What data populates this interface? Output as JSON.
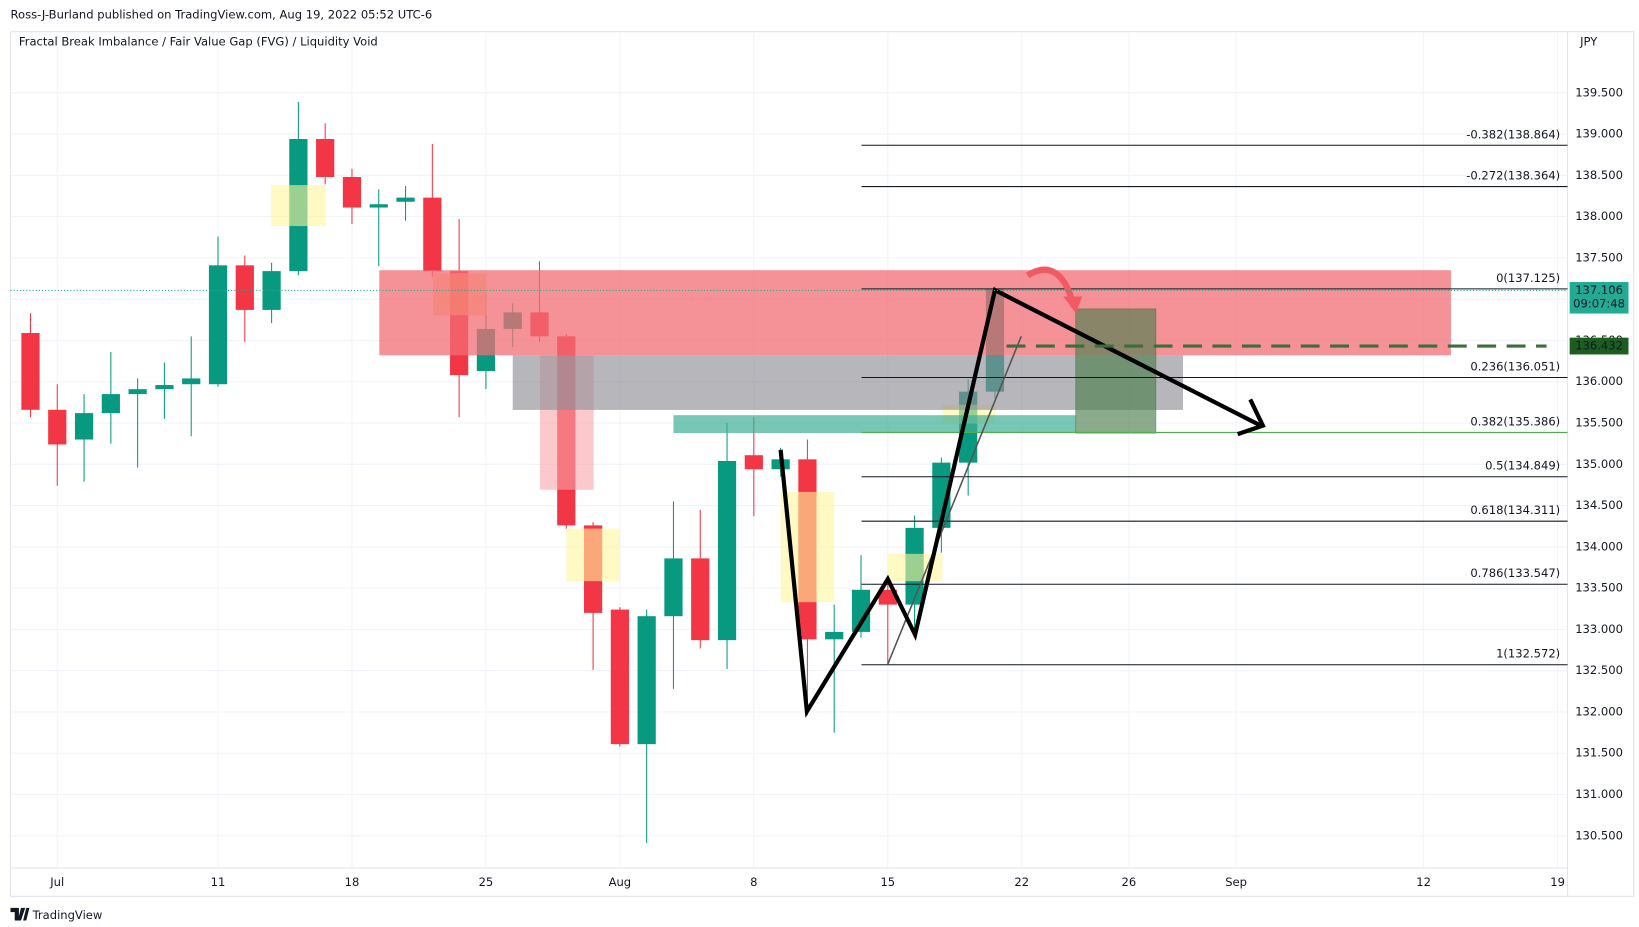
{
  "header": "Ross-J-Burland published on TradingView.com, Aug 19, 2022 05:52 UTC-6",
  "logo": "TradingView",
  "chart_data": {
    "type": "candlestick",
    "title": "Fractal Break Imbalance / Fair Value Gap (FVG) / Liquidity Void",
    "currency": "JPY",
    "categories": [
      null,
      "Jul",
      null,
      null,
      null,
      null,
      null,
      "11",
      null,
      null,
      null,
      null,
      "18",
      null,
      null,
      null,
      null,
      "25",
      null,
      null,
      null,
      null,
      "Aug",
      null,
      null,
      null,
      null,
      "8",
      null,
      null,
      null,
      null,
      "15",
      null,
      null,
      null,
      null,
      "22",
      null,
      null,
      null,
      "26",
      null,
      null,
      null,
      "Sep",
      null,
      null,
      null,
      null,
      null,
      null,
      "12",
      null,
      null,
      null,
      null,
      "19"
    ],
    "open": [
      136.59,
      135.66,
      135.3,
      135.62,
      135.85,
      135.91,
      135.97,
      135.97,
      137.41,
      136.87,
      137.34,
      138.94,
      138.48,
      138.11,
      138.18,
      138.23,
      137.34,
      136.13,
      136.64,
      136.84,
      136.55,
      134.26,
      133.24,
      131.61,
      133.16,
      133.86,
      132.87,
      135.11,
      134.94,
      135.06,
      132.88,
      132.97,
      133.48,
      133.3,
      134.23,
      135.02,
      135.88,
      null,
      null,
      null,
      null,
      null,
      null,
      null,
      null,
      null,
      null,
      null,
      null,
      null,
      null,
      null,
      null,
      null,
      null,
      null,
      null,
      null
    ],
    "high": [
      136.83,
      135.97,
      135.85,
      136.36,
      136.04,
      136.23,
      136.55,
      137.76,
      137.53,
      137.44,
      139.39,
      139.13,
      138.58,
      138.33,
      138.37,
      138.88,
      137.97,
      137.06,
      136.95,
      137.46,
      136.58,
      134.3,
      133.27,
      133.24,
      134.55,
      134.45,
      135.5,
      135.57,
      135.2,
      135.3,
      133.3,
      133.9,
      133.61,
      134.38,
      135.08,
      136.03,
      137.16,
      null,
      null,
      null,
      null,
      null,
      null,
      null,
      null,
      null,
      null,
      null,
      null,
      null,
      null,
      null,
      null,
      null,
      null,
      null,
      null,
      null
    ],
    "low": [
      135.57,
      134.74,
      134.79,
      135.25,
      134.96,
      135.55,
      135.34,
      135.94,
      136.48,
      136.71,
      137.29,
      138.39,
      137.91,
      137.4,
      137.95,
      137.27,
      135.57,
      135.91,
      136.42,
      136.48,
      134.22,
      132.51,
      131.58,
      130.41,
      132.28,
      132.77,
      132.52,
      134.37,
      134.85,
      131.96,
      131.75,
      132.9,
      132.58,
      132.91,
      133.93,
      134.62,
      135.8,
      null,
      null,
      null,
      null,
      null,
      null,
      null,
      null,
      null,
      null,
      null,
      null,
      null,
      null,
      null,
      null,
      null,
      null,
      null,
      null,
      null
    ],
    "close": [
      135.66,
      135.24,
      135.62,
      135.85,
      135.91,
      135.96,
      136.04,
      137.41,
      136.87,
      137.34,
      138.94,
      138.48,
      138.11,
      138.15,
      138.23,
      137.34,
      136.08,
      136.64,
      136.84,
      136.55,
      134.26,
      133.2,
      131.61,
      133.16,
      133.86,
      132.87,
      135.04,
      134.94,
      135.06,
      132.88,
      132.97,
      133.48,
      133.3,
      134.23,
      135.02,
      135.88,
      137.12,
      null,
      null,
      null,
      null,
      null,
      null,
      null,
      null,
      null,
      null,
      null,
      null,
      null,
      null,
      null,
      null,
      null,
      null,
      null,
      null,
      null
    ],
    "up_color": "#089981",
    "down_color": "#f23645",
    "ylim": [
      130.11,
      140.24
    ],
    "yticks": [
      {
        "value": 130.5,
        "label": "130.500"
      },
      {
        "value": 131,
        "label": "131.000"
      },
      {
        "value": 131.5,
        "label": "131.500"
      },
      {
        "value": 132,
        "label": "132.000"
      },
      {
        "value": 132.5,
        "label": "132.500"
      },
      {
        "value": 133,
        "label": "133.000"
      },
      {
        "value": 133.5,
        "label": "133.500"
      },
      {
        "value": 134,
        "label": "134.000"
      },
      {
        "value": 134.5,
        "label": "134.500"
      },
      {
        "value": 135,
        "label": "135.000"
      },
      {
        "value": 135.5,
        "label": "135.500"
      },
      {
        "value": 136,
        "label": "136.000"
      },
      {
        "value": 136.5,
        "label": "136.500"
      },
      {
        "value": 137,
        "label": "137.000"
      },
      {
        "value": 137.5,
        "label": "137.500"
      },
      {
        "value": 138,
        "label": "138.000"
      },
      {
        "value": 138.5,
        "label": "138.500"
      },
      {
        "value": 139,
        "label": "139.000"
      },
      {
        "value": 139.5,
        "label": "139.500"
      }
    ],
    "grid": true,
    "fib_levels": [
      {
        "value": 138.864,
        "label": "-0.382(138.864)",
        "color": "#131722"
      },
      {
        "value": 138.364,
        "label": "-0.272(138.364)",
        "color": "#131722"
      },
      {
        "value": 137.125,
        "label": "0(137.125)",
        "color": "#131722"
      },
      {
        "value": 136.051,
        "label": "0.236(136.051)",
        "color": "#131722"
      },
      {
        "value": 135.386,
        "label": "0.382(135.386)",
        "color": "#4caf50"
      },
      {
        "value": 134.849,
        "label": "0.5(134.849)",
        "color": "#131722"
      },
      {
        "value": 134.311,
        "label": "0.618(134.311)",
        "color": "#131722"
      },
      {
        "value": 133.547,
        "label": "0.786(133.547)",
        "color": "#131722"
      },
      {
        "value": 132.572,
        "label": "1(132.572)",
        "color": "#131722"
      }
    ],
    "last_price": {
      "value": 137.106,
      "countdown": "09:07:48",
      "color": "#22ab94"
    },
    "target_price": {
      "value": 136.432,
      "color": "#1b5e20",
      "line_color": "#3b6e3a"
    }
  }
}
